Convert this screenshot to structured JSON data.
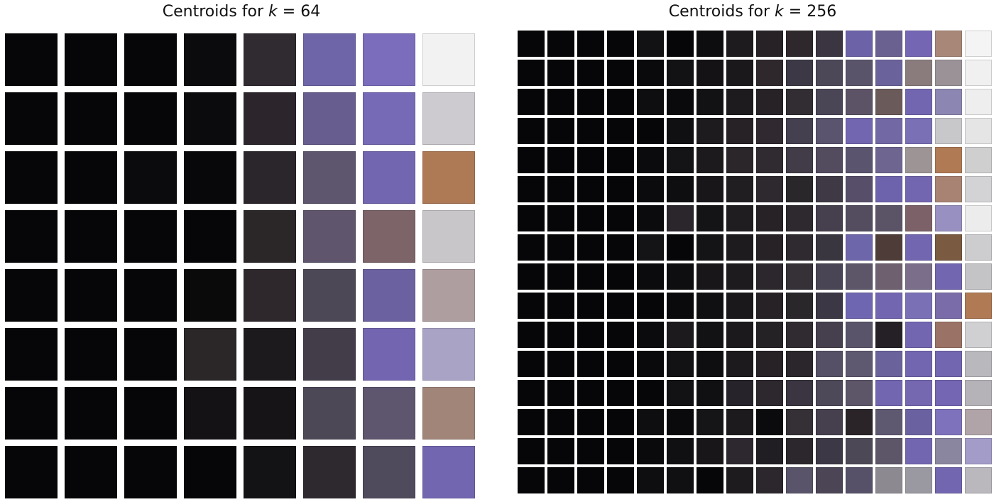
{
  "panels": [
    {
      "id": "left",
      "title_prefix": "Centroids for ",
      "title_var": "k",
      "title_op": " = ",
      "title_value": "64",
      "cols": 8,
      "colors": [
        "#060608",
        "#060608",
        "#060608",
        "#0b0b0d",
        "#302a31",
        "#6e64a8",
        "#7b6dbc",
        "#f2f2f2",
        "#060608",
        "#060608",
        "#060608",
        "#0b0b0d",
        "#2c262c",
        "#675d8e",
        "#7669b6",
        "#cdcbd0",
        "#060608",
        "#060608",
        "#0b0b0d",
        "#08080a",
        "#2b262b",
        "#5d566e",
        "#7366b0",
        "#ad7a55",
        "#060608",
        "#060608",
        "#060608",
        "#060608",
        "#2b2729",
        "#5f566d",
        "#7c6468",
        "#c8c6c8",
        "#060608",
        "#060608",
        "#060608",
        "#0a0a0b",
        "#2e282d",
        "#4d4856",
        "#6b61a0",
        "#ae9ea0",
        "#060608",
        "#060608",
        "#060608",
        "#2b2729",
        "#1c1a1c",
        "#433d4a",
        "#7365b0",
        "#a9a4c6",
        "#060608",
        "#060608",
        "#060608",
        "#141214",
        "#161416",
        "#4d4856",
        "#5d566e",
        "#a08578",
        "#060608",
        "#060608",
        "#060608",
        "#060608",
        "#131214",
        "#2d292e",
        "#4f4b5c",
        "#7366b0"
      ]
    },
    {
      "id": "right",
      "title_prefix": "Centroids for ",
      "title_var": "k",
      "title_op": " = ",
      "title_value": "256",
      "cols": 16,
      "colors": [
        "#060608",
        "#060608",
        "#060608",
        "#060608",
        "#121113",
        "#060608",
        "#0d0c0e",
        "#1e1b1f",
        "#262226",
        "#2e282d",
        "#3a3540",
        "#6c62a8",
        "#6b6190",
        "#7466b3",
        "#a88779",
        "#f4f4f4",
        "#060608",
        "#060608",
        "#060608",
        "#060608",
        "#0a0a0c",
        "#121113",
        "#141214",
        "#1a181b",
        "#2e282d",
        "#3d3845",
        "#4d4858",
        "#5a546a",
        "#6a629a",
        "#8a7c7c",
        "#9a9297",
        "#f0f0f0",
        "#060608",
        "#060608",
        "#060608",
        "#060608",
        "#0e0d0f",
        "#0a0a0c",
        "#121113",
        "#1e1b1e",
        "#262226",
        "#322c33",
        "#4b4656",
        "#5c5466",
        "#6a5a5a",
        "#7366b0",
        "#8c86b3",
        "#eeeeee",
        "#060608",
        "#060608",
        "#060608",
        "#060608",
        "#060608",
        "#101012",
        "#1e1b1e",
        "#262226",
        "#302a30",
        "#45404f",
        "#5a546e",
        "#7366b0",
        "#7268a4",
        "#7a70b6",
        "#c8c7c9",
        "#e5e5e5",
        "#060608",
        "#060608",
        "#060608",
        "#060608",
        "#0b0b0d",
        "#141315",
        "#1c1a1c",
        "#2a262a",
        "#302b31",
        "#413c48",
        "#524c5e",
        "#5a546e",
        "#6e6690",
        "#9d9496",
        "#b07a55",
        "#cfcfcf",
        "#060608",
        "#060608",
        "#060608",
        "#060608",
        "#0b0b0d",
        "#0e0d0f",
        "#181619",
        "#201e21",
        "#2e292e",
        "#2a272a",
        "#3e3945",
        "#574f6a",
        "#6d63ac",
        "#7366b0",
        "#a88272",
        "#d3d3d6",
        "#060608",
        "#060608",
        "#060608",
        "#060608",
        "#0b0b0d",
        "#2a262b",
        "#141315",
        "#201d21",
        "#262226",
        "#2e292e",
        "#46404e",
        "#534d5f",
        "#5a5466",
        "#7c6268",
        "#9890c0",
        "#ececec",
        "#060608",
        "#060608",
        "#060608",
        "#060608",
        "#141315",
        "#060608",
        "#141315",
        "#1d1b1e",
        "#262226",
        "#2e2a30",
        "#3a3640",
        "#6e66aa",
        "#4d3c38",
        "#7366b0",
        "#7a5a40",
        "#cdcdcf",
        "#060608",
        "#060608",
        "#060608",
        "#060608",
        "#0b0b0d",
        "#0e0d0f",
        "#181619",
        "#1d1b1e",
        "#2b272c",
        "#353137",
        "#4a4554",
        "#5c5668",
        "#6f6070",
        "#7a6e8a",
        "#7366b0",
        "#c4c4c6",
        "#060608",
        "#060608",
        "#060608",
        "#060608",
        "#060608",
        "#0a0a0c",
        "#101012",
        "#1a181b",
        "#262226",
        "#2a272b",
        "#3c3744",
        "#6e66b0",
        "#7366b0",
        "#7a70b6",
        "#7a6ca8",
        "#b07a55",
        "#060608",
        "#060608",
        "#060608",
        "#060608",
        "#0b0b0d",
        "#1d1a1d",
        "#121113",
        "#1b191c",
        "#252226",
        "#302b31",
        "#46404e",
        "#5a546a",
        "#242026",
        "#7366b0",
        "#9a7266",
        "#d0d0d2",
        "#060608",
        "#060608",
        "#060608",
        "#060608",
        "#0a0a0c",
        "#121113",
        "#0e0d0f",
        "#1c1a1c",
        "#262226",
        "#2a262b",
        "#565066",
        "#5e5870",
        "#6a629a",
        "#7366b0",
        "#7366b0",
        "#b9b8bc",
        "#060608",
        "#060608",
        "#060608",
        "#060608",
        "#060608",
        "#121113",
        "#101012",
        "#27232a",
        "#2c282d",
        "#3a3540",
        "#4e4958",
        "#5c5668",
        "#7366b0",
        "#7568b0",
        "#7466b3",
        "#b6b3b8",
        "#060608",
        "#060608",
        "#060608",
        "#060608",
        "#0e0d0f",
        "#0a0a0c",
        "#151416",
        "#1c1a1c",
        "#0b0b0d",
        "#343036",
        "#46404e",
        "#2a2428",
        "#5e5870",
        "#6a62a0",
        "#7e72bc",
        "#b0a4a8",
        "#060608",
        "#060608",
        "#060608",
        "#060608",
        "#0a0a0c",
        "#101012",
        "#181619",
        "#2d2830",
        "#201e22",
        "#2b272c",
        "#3d3845",
        "#4d4856",
        "#5c5668",
        "#7366b0",
        "#8a86a0",
        "#a39cc8",
        "#060608",
        "#060608",
        "#060608",
        "#060608",
        "#0e0d0f",
        "#101012",
        "#060608",
        "#1d1b1e",
        "#2b272c",
        "#5a546a",
        "#4b4555",
        "#565068",
        "#8c8a90",
        "#9a98a0",
        "#7366b0",
        "#bab8bc"
      ]
    }
  ]
}
